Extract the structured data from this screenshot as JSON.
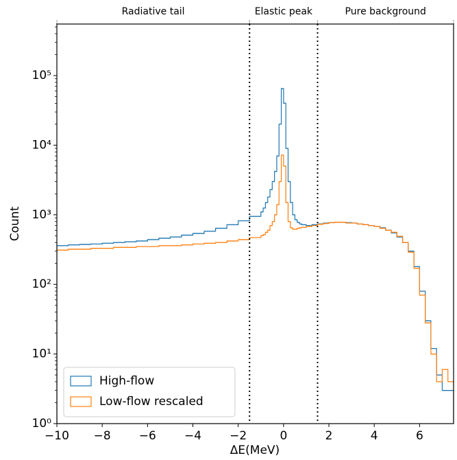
{
  "chart_data": {
    "type": "histogram",
    "xlabel": "ΔE(MeV)",
    "ylabel": "Count",
    "log_y": true,
    "xlim": [
      -10,
      7.5
    ],
    "ylim": [
      1,
      550000
    ],
    "xticks": [
      {
        "value": -10,
        "label": "−10"
      },
      {
        "value": -8,
        "label": "−8"
      },
      {
        "value": -6,
        "label": "−6"
      },
      {
        "value": -4,
        "label": "−4"
      },
      {
        "value": -2,
        "label": "−2"
      },
      0,
      2,
      4,
      6
    ],
    "yticks": [
      {
        "value": 1,
        "label": "10⁰"
      },
      {
        "value": 10,
        "label": "10¹"
      },
      {
        "value": 100,
        "label": "10²"
      },
      {
        "value": 1000,
        "label": "10³"
      },
      {
        "value": 10000,
        "label": "10⁴"
      },
      {
        "value": 100000,
        "label": "10⁵"
      }
    ],
    "vlines": [
      -1.5,
      1.5
    ],
    "regions": [
      {
        "label": "Radiative tail",
        "start": -10,
        "end": -1.5
      },
      {
        "label": "Elastic peak",
        "start": -1.5,
        "end": 1.5
      },
      {
        "label": "Pure background",
        "start": 1.5,
        "end": 7.5
      }
    ],
    "legend": "lower left",
    "bins": [
      -10,
      -9.5,
      -9,
      -8.5,
      -8,
      -7.5,
      -7,
      -6.5,
      -6,
      -5.5,
      -5,
      -4.5,
      -4,
      -3.5,
      -3,
      -2.5,
      -2,
      -1.5,
      -1,
      -0.9,
      -0.8,
      -0.7,
      -0.6,
      -0.5,
      -0.4,
      -0.3,
      -0.2,
      -0.1,
      0,
      0.1,
      0.2,
      0.3,
      0.4,
      0.5,
      0.6,
      0.7,
      0.8,
      0.9,
      1,
      1.25,
      1.5,
      1.75,
      2,
      2.25,
      2.5,
      2.75,
      3,
      3.25,
      3.5,
      3.75,
      4,
      4.25,
      4.5,
      4.75,
      5,
      5.25,
      5.5,
      5.75,
      6,
      6.25,
      6.5,
      6.75,
      7,
      7.25,
      7.5
    ],
    "series": [
      {
        "name": "High-flow",
        "color": "#1f77b4",
        "values": [
          360,
          370,
          375,
          380,
          390,
          400,
          410,
          420,
          440,
          460,
          480,
          510,
          540,
          580,
          640,
          720,
          820,
          950,
          1100,
          1250,
          1500,
          1800,
          2300,
          3000,
          4200,
          7000,
          20000,
          65000,
          40000,
          9000,
          3000,
          1500,
          1000,
          850,
          780,
          740,
          720,
          720,
          700,
          720,
          740,
          760,
          770,
          780,
          780,
          770,
          760,
          740,
          720,
          700,
          680,
          650,
          600,
          550,
          480,
          400,
          300,
          180,
          80,
          30,
          12,
          5,
          3,
          3
        ]
      },
      {
        "name": "Low-flow rescaled",
        "color": "#ff7f0e",
        "values": [
          310,
          320,
          320,
          330,
          330,
          340,
          340,
          350,
          350,
          360,
          360,
          370,
          380,
          390,
          400,
          420,
          440,
          470,
          500,
          520,
          560,
          600,
          700,
          800,
          1000,
          1400,
          3000,
          7200,
          5000,
          1500,
          800,
          650,
          620,
          620,
          640,
          650,
          660,
          660,
          680,
          700,
          730,
          750,
          770,
          780,
          780,
          760,
          760,
          740,
          720,
          700,
          680,
          640,
          600,
          560,
          490,
          400,
          290,
          170,
          70,
          28,
          10,
          4,
          6,
          4
        ]
      }
    ]
  }
}
